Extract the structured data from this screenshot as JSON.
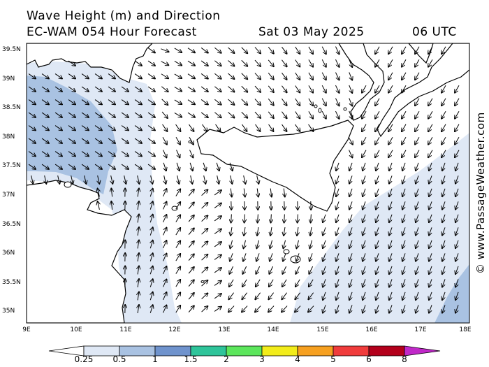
{
  "header": {
    "title_line1": "Wave Height (m) and Direction",
    "title_line2": "EC-WAM 054 Hour Forecast",
    "valid_day": "Sat 03 May 2025",
    "valid_time": "06 UTC"
  },
  "axes": {
    "lat_labels": [
      "39.5N",
      "39N",
      "38.5N",
      "38N",
      "37.5N",
      "37N",
      "36.5N",
      "36N",
      "35.5N",
      "35N"
    ],
    "lon_labels": [
      "9E",
      "10E",
      "11E",
      "12E",
      "13E",
      "14E",
      "15E",
      "16E",
      "17E",
      "18E"
    ]
  },
  "colorbar": {
    "labels": [
      "0.25",
      "0.5",
      "1",
      "1.5",
      "2",
      "3",
      "4",
      "5",
      "6",
      "8"
    ],
    "colors": [
      "#ffffff",
      "#dfe8f5",
      "#a9c2e2",
      "#6f93cd",
      "#2ec49a",
      "#5ce65c",
      "#f2ec1a",
      "#f6a020",
      "#f03c3c",
      "#b3001b",
      "#c028c8"
    ]
  },
  "watermark": "© www.PassageWeather.com",
  "colors": {
    "land": "#ffffff",
    "sea_low": "#ffffff",
    "sea_band1": "#dfe8f5",
    "sea_band2": "#a9c2e2"
  }
}
